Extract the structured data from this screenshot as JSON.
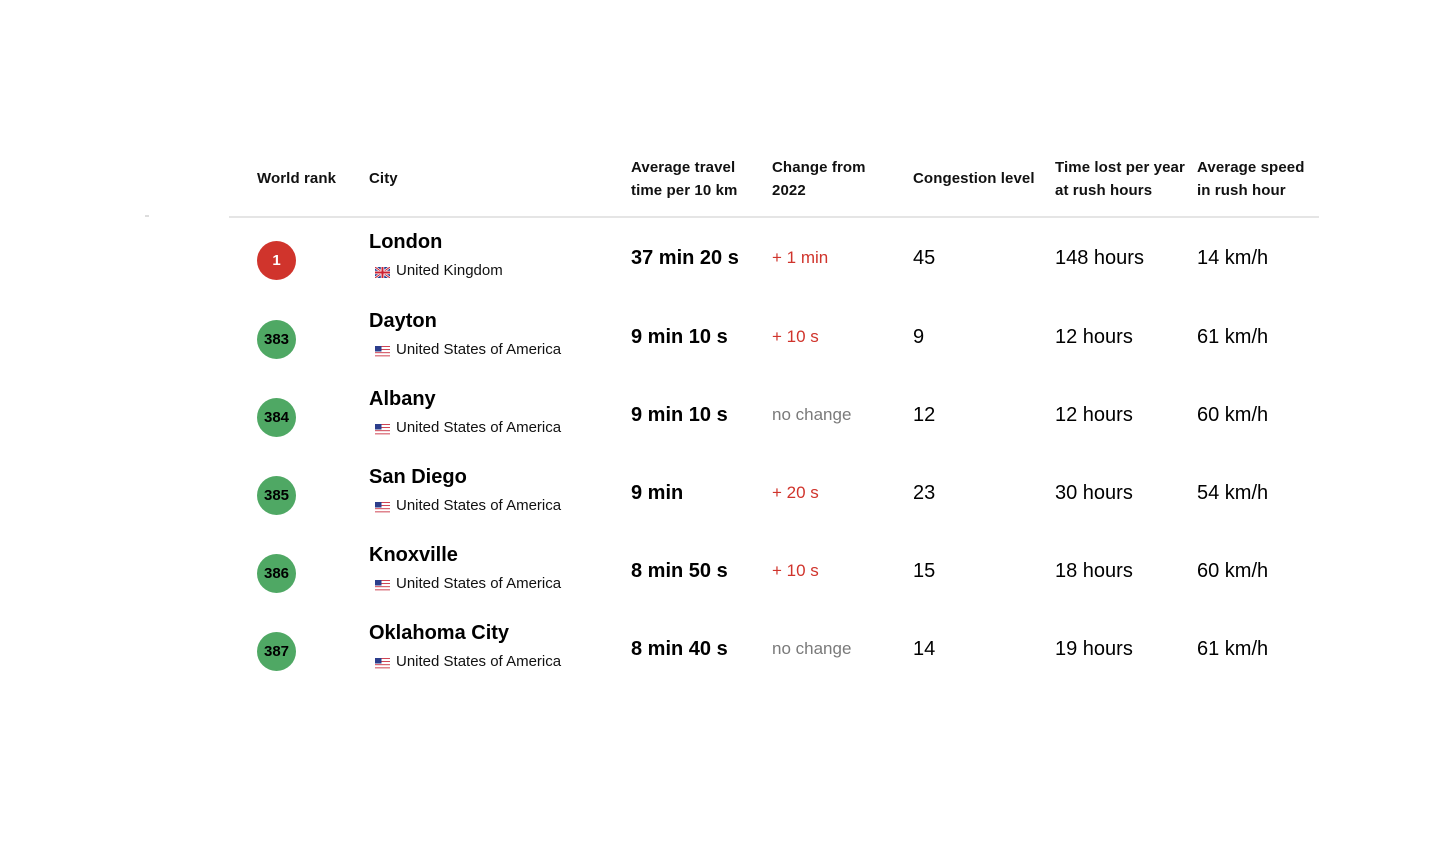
{
  "table": {
    "headers": {
      "world_rank": "World rank",
      "city": "City",
      "avg_travel": "Average travel time per 10 km",
      "change": "Change from 2022",
      "congestion": "Congestion level",
      "time_lost": "Time lost per year at rush hours",
      "avg_speed": "Average speed in rush hour"
    },
    "rows": [
      {
        "rank": "1",
        "rank_color": "#d0342c",
        "rank_text_color": "#ffffff",
        "city": "London",
        "country": "United Kingdom",
        "flag_icon": "uk-flag-icon",
        "avg_travel": "37 min 20 s",
        "change": "+ 1 min",
        "change_color": "#d0342c",
        "congestion": "45",
        "time_lost": "148 hours",
        "avg_speed": "14 km/h"
      },
      {
        "rank": "383",
        "rank_color": "#4fa864",
        "rank_text_color": "#000000",
        "city": "Dayton",
        "country": "United States of America",
        "flag_icon": "us-flag-icon",
        "avg_travel": "9 min 10 s",
        "change": "+ 10 s",
        "change_color": "#d0342c",
        "congestion": "9",
        "time_lost": "12 hours",
        "avg_speed": "61 km/h"
      },
      {
        "rank": "384",
        "rank_color": "#4fa864",
        "rank_text_color": "#000000",
        "city": "Albany",
        "country": "United States of America",
        "flag_icon": "us-flag-icon",
        "avg_travel": "9 min 10 s",
        "change": "no change",
        "change_color": "#7a7a7a",
        "congestion": "12",
        "time_lost": "12 hours",
        "avg_speed": "60 km/h"
      },
      {
        "rank": "385",
        "rank_color": "#4fa864",
        "rank_text_color": "#000000",
        "city": "San Diego",
        "country": "United States of America",
        "flag_icon": "us-flag-icon",
        "avg_travel": "9 min",
        "change": "+ 20 s",
        "change_color": "#d0342c",
        "congestion": "23",
        "time_lost": "30 hours",
        "avg_speed": "54 km/h"
      },
      {
        "rank": "386",
        "rank_color": "#4fa864",
        "rank_text_color": "#000000",
        "city": "Knoxville",
        "country": "United States of America",
        "flag_icon": "us-flag-icon",
        "avg_travel": "8 min 50 s",
        "change": "+ 10 s",
        "change_color": "#d0342c",
        "congestion": "15",
        "time_lost": "18 hours",
        "avg_speed": "60 km/h"
      },
      {
        "rank": "387",
        "rank_color": "#4fa864",
        "rank_text_color": "#000000",
        "city": "Oklahoma City",
        "country": "United States of America",
        "flag_icon": "us-flag-icon",
        "avg_travel": "8 min 40 s",
        "change": "no change",
        "change_color": "#7a7a7a",
        "congestion": "14",
        "time_lost": "19 hours",
        "avg_speed": "61 km/h"
      }
    ]
  }
}
